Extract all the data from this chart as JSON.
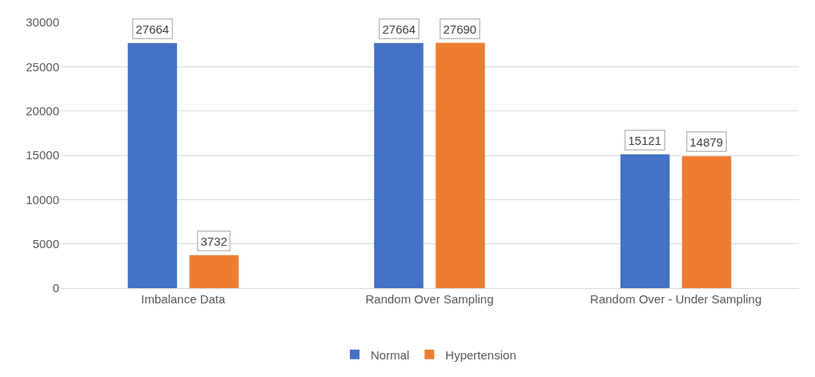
{
  "chart_data": {
    "type": "bar",
    "categories": [
      "Imbalance Data",
      "Random Over Sampling",
      "Random Over - Under Sampling"
    ],
    "series": [
      {
        "name": "Normal",
        "color": "#4472c4",
        "values": [
          27664,
          27664,
          15121
        ]
      },
      {
        "name": "Hypertension",
        "color": "#ed7d31",
        "values": [
          3732,
          27690,
          14879
        ]
      }
    ],
    "ylim": [
      0,
      30000
    ],
    "yticks": [
      0,
      5000,
      10000,
      15000,
      20000,
      25000,
      30000
    ],
    "grid": "y",
    "legend": "bottom",
    "data_labels": true
  }
}
